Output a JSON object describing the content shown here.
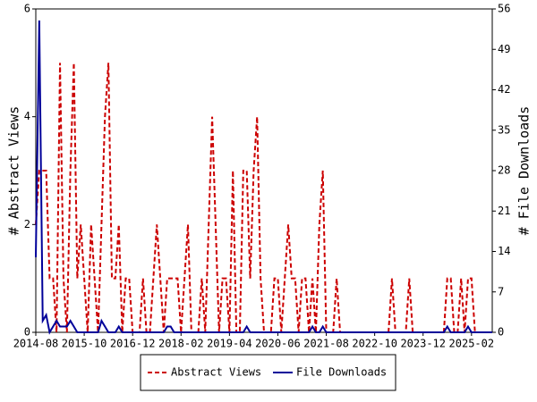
{
  "chart_data": {
    "type": "line",
    "y_label": "# Abstract Views",
    "y2_label": "# File Downloads",
    "x": [
      "2014-08",
      "2014-09",
      "2014-10",
      "2014-11",
      "2014-12",
      "2015-01",
      "2015-02",
      "2015-03",
      "2015-04",
      "2015-05",
      "2015-06",
      "2015-07",
      "2015-08",
      "2015-09",
      "2015-10",
      "2015-11",
      "2015-12",
      "2016-01",
      "2016-02",
      "2016-03",
      "2016-04",
      "2016-05",
      "2016-06",
      "2016-07",
      "2016-08",
      "2016-09",
      "2016-10",
      "2016-11",
      "2016-12",
      "2017-01",
      "2017-02",
      "2017-03",
      "2017-04",
      "2017-05",
      "2017-06",
      "2017-07",
      "2017-08",
      "2017-09",
      "2017-10",
      "2017-11",
      "2017-12",
      "2018-01",
      "2018-02",
      "2018-03",
      "2018-04",
      "2018-05",
      "2018-06",
      "2018-07",
      "2018-08",
      "2018-09",
      "2018-10",
      "2018-11",
      "2018-12",
      "2019-01",
      "2019-02",
      "2019-03",
      "2019-04",
      "2019-05",
      "2019-06",
      "2019-07",
      "2019-08",
      "2019-09",
      "2019-10",
      "2019-11",
      "2019-12",
      "2020-01",
      "2020-02",
      "2020-03",
      "2020-04",
      "2020-05",
      "2020-06",
      "2020-07",
      "2020-08",
      "2020-09",
      "2020-10",
      "2020-11",
      "2020-12",
      "2021-01",
      "2021-02",
      "2021-03",
      "2021-04",
      "2021-05",
      "2021-06",
      "2021-07",
      "2021-08",
      "2021-09",
      "2021-10",
      "2021-11",
      "2021-12",
      "2022-01",
      "2022-02",
      "2022-03",
      "2022-04",
      "2022-05",
      "2022-06",
      "2022-07",
      "2022-08",
      "2022-09",
      "2022-10",
      "2022-11",
      "2022-12",
      "2023-01",
      "2023-02",
      "2023-03",
      "2023-04",
      "2023-05",
      "2023-06",
      "2023-07",
      "2023-08",
      "2023-09",
      "2023-10",
      "2023-11",
      "2023-12",
      "2024-01",
      "2024-02",
      "2024-03",
      "2024-04",
      "2024-05",
      "2024-06",
      "2024-07",
      "2024-08",
      "2024-09",
      "2024-10",
      "2024-11",
      "2024-12",
      "2025-01",
      "2025-02",
      "2025-03",
      "2025-04",
      "2025-05",
      "2025-06",
      "2025-07",
      "2025-08"
    ],
    "series": [
      {
        "name": "Abstract Views",
        "color": "#cc0000",
        "dash": true,
        "values": [
          2,
          3,
          3,
          3,
          1,
          1,
          0,
          5,
          1,
          0,
          3,
          5,
          1,
          2,
          1,
          0,
          2,
          1,
          0,
          2,
          4,
          5,
          1,
          1,
          2,
          0,
          1,
          1,
          0,
          0,
          0,
          1,
          0,
          0,
          1,
          2,
          1,
          0,
          1,
          1,
          1,
          1,
          0,
          1,
          2,
          0,
          0,
          0,
          1,
          0,
          2,
          4,
          2,
          0,
          1,
          1,
          0,
          3,
          0,
          0,
          3,
          3,
          1,
          3,
          4,
          1,
          0,
          0,
          0,
          1,
          1,
          0,
          1,
          2,
          1,
          1,
          0,
          1,
          1,
          0,
          1,
          0,
          2,
          3,
          0,
          0,
          0,
          1,
          0,
          0,
          0,
          0,
          0,
          0,
          0,
          0,
          0,
          0,
          0,
          0,
          0,
          0,
          0,
          1,
          0,
          0,
          0,
          0,
          1,
          0,
          0,
          0,
          0,
          0,
          0,
          0,
          0,
          0,
          0,
          1,
          1,
          0,
          0,
          1,
          0,
          1,
          1,
          0,
          0,
          0,
          0,
          0,
          0
        ]
      },
      {
        "name": "File Downloads",
        "color": "#000099",
        "dash": false,
        "axis": "y2",
        "values": [
          13,
          54,
          2,
          3,
          0,
          1,
          2,
          1,
          1,
          1,
          2,
          1,
          0,
          0,
          0,
          0,
          0,
          0,
          0,
          2,
          1,
          0,
          0,
          0,
          1,
          0,
          0,
          0,
          0,
          0,
          0,
          0,
          0,
          0,
          0,
          0,
          0,
          0,
          1,
          1,
          0,
          0,
          0,
          0,
          0,
          0,
          0,
          0,
          0,
          0,
          0,
          0,
          0,
          0,
          0,
          0,
          0,
          0,
          0,
          0,
          0,
          1,
          0,
          0,
          0,
          0,
          0,
          0,
          0,
          0,
          0,
          0,
          0,
          0,
          0,
          0,
          0,
          0,
          0,
          0,
          1,
          0,
          0,
          1,
          0,
          0,
          0,
          0,
          0,
          0,
          0,
          0,
          0,
          0,
          0,
          0,
          0,
          0,
          0,
          0,
          0,
          0,
          0,
          0,
          0,
          0,
          0,
          0,
          0,
          0,
          0,
          0,
          0,
          0,
          0,
          0,
          0,
          0,
          0,
          1,
          0,
          0,
          0,
          0,
          0,
          1,
          0,
          0,
          0,
          0,
          0,
          0,
          0
        ]
      }
    ],
    "xticks": [
      "2014-08",
      "2015-10",
      "2016-12",
      "2018-02",
      "2019-04",
      "2020-06",
      "2021-08",
      "2022-10",
      "2023-12",
      "2025-02"
    ],
    "ylim": [
      0,
      6
    ],
    "yticks": [
      0,
      2,
      4,
      6
    ],
    "y2lim": [
      0,
      56
    ],
    "y2ticks": [
      0,
      7,
      14,
      21,
      28,
      35,
      42,
      49,
      56
    ],
    "legend": "bottom"
  }
}
